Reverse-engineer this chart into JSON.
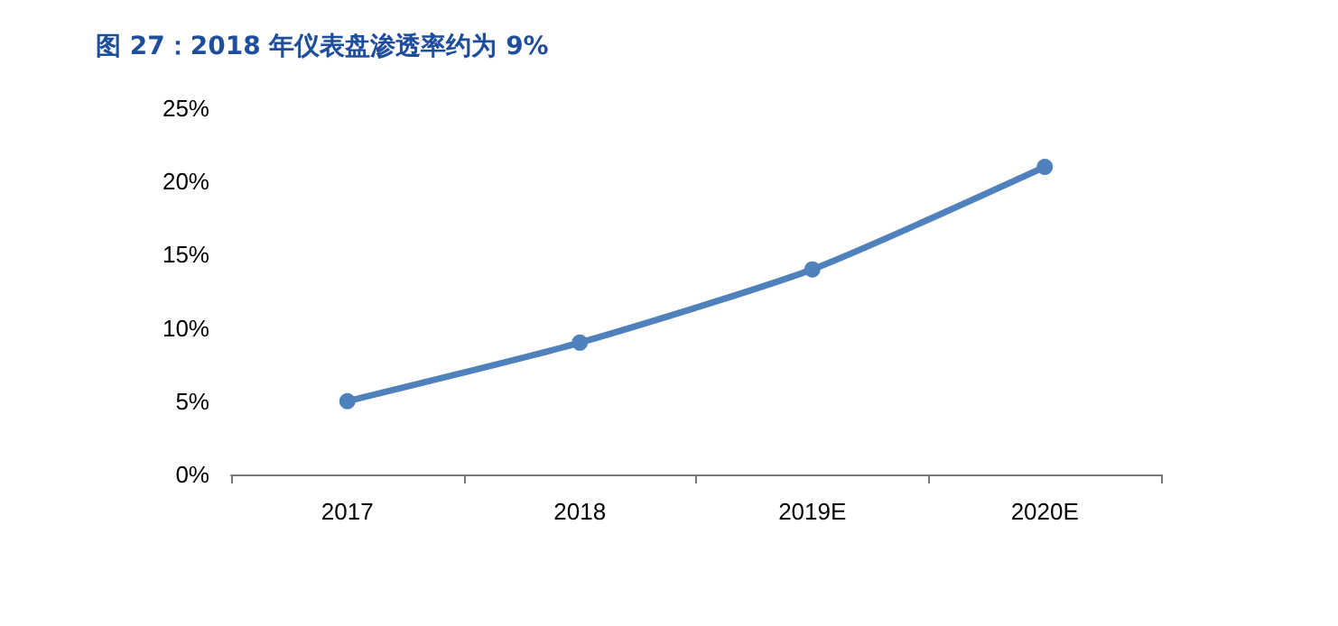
{
  "chart_data": {
    "type": "line",
    "title": "图 27：2018 年仪表盘渗透率约为 9%",
    "categories": [
      "2017",
      "2018",
      "2019E",
      "2020E"
    ],
    "series": [
      {
        "color": "#4f81bd",
        "values": [
          5,
          9,
          14,
          21
        ]
      }
    ],
    "ylim": [
      0,
      25
    ],
    "yticks": [
      {
        "value": 0,
        "label": "0%"
      },
      {
        "value": 5,
        "label": "5%"
      },
      {
        "value": 10,
        "label": "10%"
      },
      {
        "value": 15,
        "label": "15%"
      },
      {
        "value": 20,
        "label": "20%"
      },
      {
        "value": 25,
        "label": "25%"
      }
    ],
    "grid": false,
    "marker": "circle",
    "line_style": "solid"
  }
}
